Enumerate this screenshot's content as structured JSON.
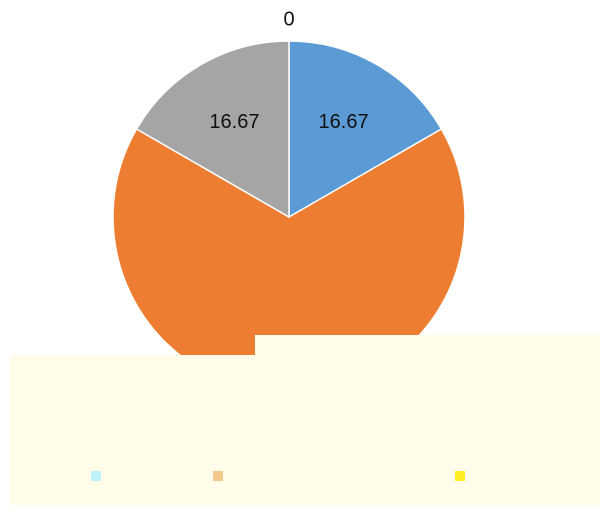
{
  "chart_data": {
    "type": "pie",
    "title": "0",
    "values": [
      16.67,
      66.67,
      16.67
    ],
    "colors": [
      "#5b9bd5",
      "#ed7d31",
      "#a5a5a5"
    ]
  }
}
